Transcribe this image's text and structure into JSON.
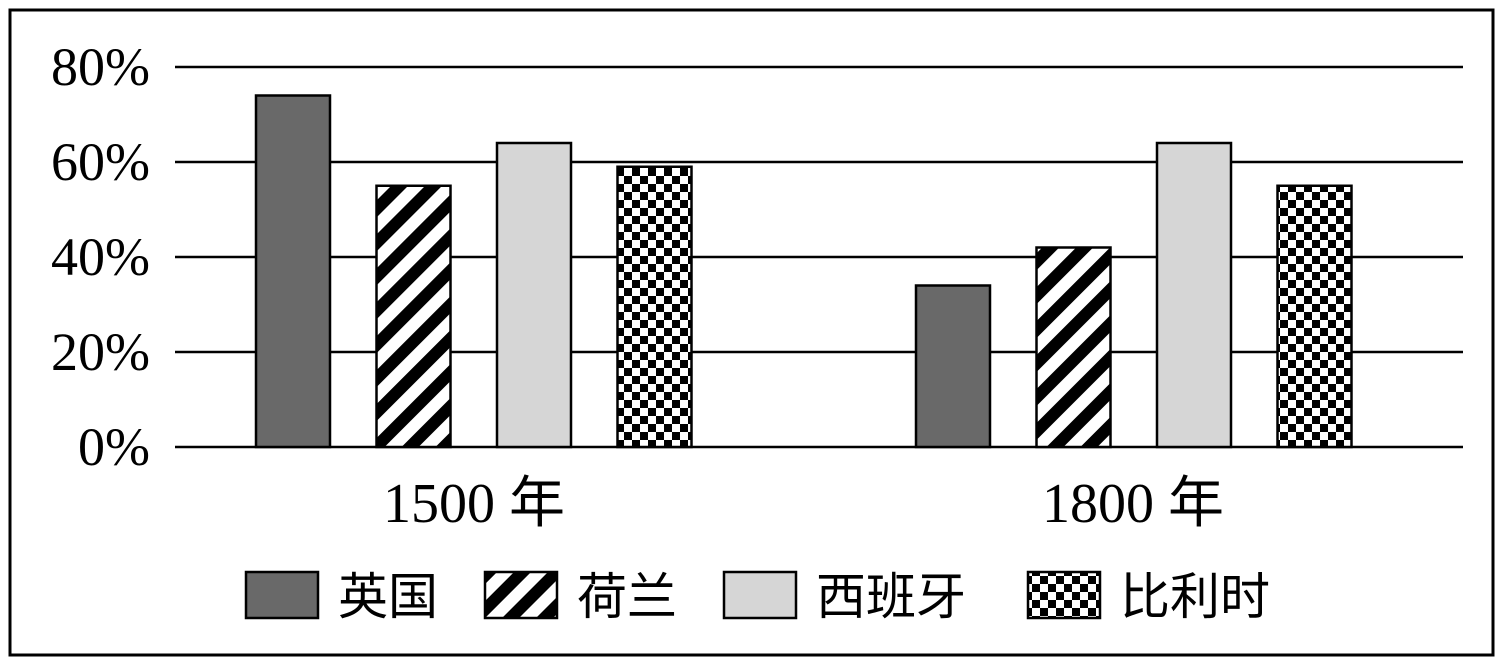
{
  "chart_data": {
    "type": "bar",
    "categories": [
      "1500 年",
      "1800 年"
    ],
    "series": [
      {
        "name": "英国",
        "values": [
          74,
          34
        ],
        "fill": "solid-dark",
        "color": "#696969"
      },
      {
        "name": "荷兰",
        "values": [
          55,
          42
        ],
        "fill": "diagonal-stripes",
        "color": "#000000"
      },
      {
        "name": "西班牙",
        "values": [
          64,
          64
        ],
        "fill": "solid-light",
        "color": "#d6d6d6"
      },
      {
        "name": "比利时",
        "values": [
          59,
          55
        ],
        "fill": "checkerboard",
        "color": "#000000"
      }
    ],
    "y_ticks": [
      "0%",
      "20%",
      "40%",
      "60%",
      "80%"
    ],
    "y_tick_values": [
      0,
      20,
      40,
      60,
      80
    ],
    "ylim": [
      0,
      80
    ],
    "grid": true,
    "legend_position": "bottom",
    "title": "",
    "xlabel": "",
    "ylabel": ""
  }
}
